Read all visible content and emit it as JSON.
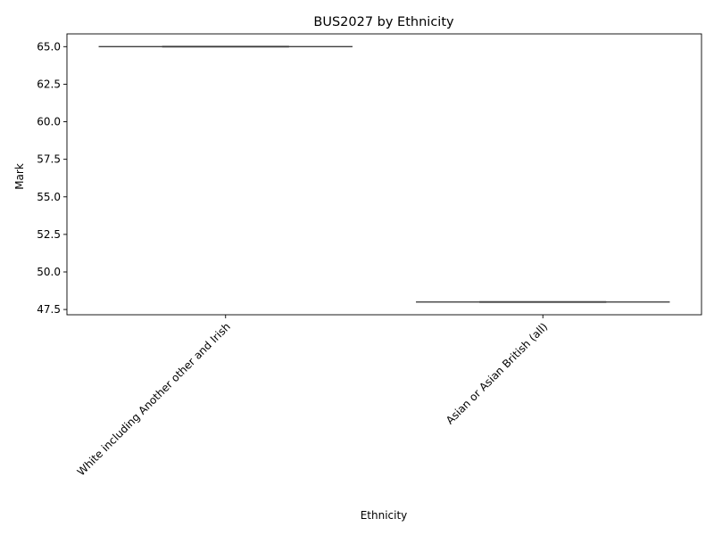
{
  "chart_data": {
    "type": "box",
    "title": "BUS2027 by Ethnicity",
    "xlabel": "Ethnicity",
    "ylabel": "Mark",
    "categories": [
      "White including Another other and Irish",
      "Asian or Asian British (all)"
    ],
    "values": [
      65.0,
      48.0
    ],
    "ylim": [
      47.15,
      65.85
    ],
    "yticks": [
      47.5,
      50.0,
      52.5,
      55.0,
      57.5,
      60.0,
      62.5,
      65.0
    ],
    "ytick_labels": [
      "47.5",
      "50.0",
      "52.5",
      "55.0",
      "57.5",
      "60.0",
      "62.5",
      "65.0"
    ],
    "grid": false,
    "box_color": "#3f3f3f"
  }
}
